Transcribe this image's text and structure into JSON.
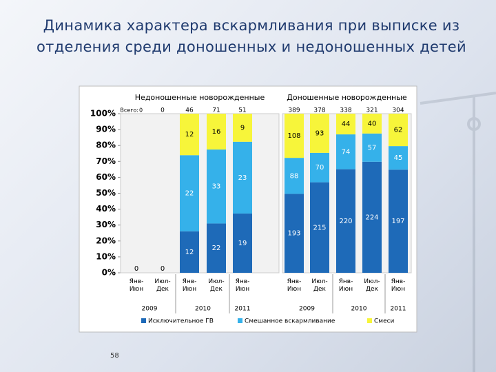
{
  "title": "Динамика характера вскармливания при выписке из отделения среди доношенных и недоношенных детей",
  "page_number": "58",
  "chart_data": {
    "type": "stacked_percent_bar",
    "ylim": [
      0,
      100
    ],
    "yticks": [
      {
        "value": 0,
        "label": "0%"
      },
      {
        "value": 10,
        "label": "10%"
      },
      {
        "value": 20,
        "label": "20%"
      },
      {
        "value": 30,
        "label": "30%"
      },
      {
        "value": 40,
        "label": "40%"
      },
      {
        "value": 50,
        "label": "50%"
      },
      {
        "value": 60,
        "label": "60%"
      },
      {
        "value": 70,
        "label": "70%"
      },
      {
        "value": 80,
        "label": "80%"
      },
      {
        "value": 90,
        "label": "90%"
      },
      {
        "value": 100,
        "label": "100%"
      }
    ],
    "legend": [
      {
        "name": "Исключительное ГВ",
        "color": "#1e6ab8"
      },
      {
        "name": "Смешанное вскармливание",
        "color": "#35b1ea"
      },
      {
        "name": "Смеси",
        "color": "#f7f53a"
      }
    ],
    "total_prefix": "Всего:",
    "panels": [
      {
        "title": "Недоношенные новорожденные",
        "groups": [
          {
            "year": "2009",
            "categories": [
              "Янв-Июн",
              "Июл-Дек"
            ]
          },
          {
            "year": "2010",
            "categories": [
              "Янв-Июн",
              "Июл-Дек"
            ]
          },
          {
            "year": "2011",
            "categories": [
              "Янв-Июн"
            ]
          }
        ],
        "totals": [
          0,
          0,
          46,
          71,
          51
        ],
        "values": [
          [
            0,
            0,
            12,
            22,
            19
          ],
          [
            null,
            null,
            22,
            33,
            23
          ],
          [
            null,
            null,
            12,
            16,
            9
          ]
        ]
      },
      {
        "title": "Доношенные новорожденные",
        "groups": [
          {
            "year": "2009",
            "categories": [
              "Янв-Июн",
              "Июл-Дек"
            ]
          },
          {
            "year": "2010",
            "categories": [
              "Янв-Июн",
              "Июл-Дек"
            ]
          },
          {
            "year": "2011",
            "categories": [
              "Янв-Июн"
            ]
          }
        ],
        "totals": [
          389,
          378,
          338,
          321,
          304
        ],
        "values": [
          [
            193,
            215,
            220,
            224,
            197
          ],
          [
            88,
            70,
            74,
            57,
            45
          ],
          [
            108,
            93,
            44,
            40,
            62
          ]
        ]
      }
    ]
  }
}
